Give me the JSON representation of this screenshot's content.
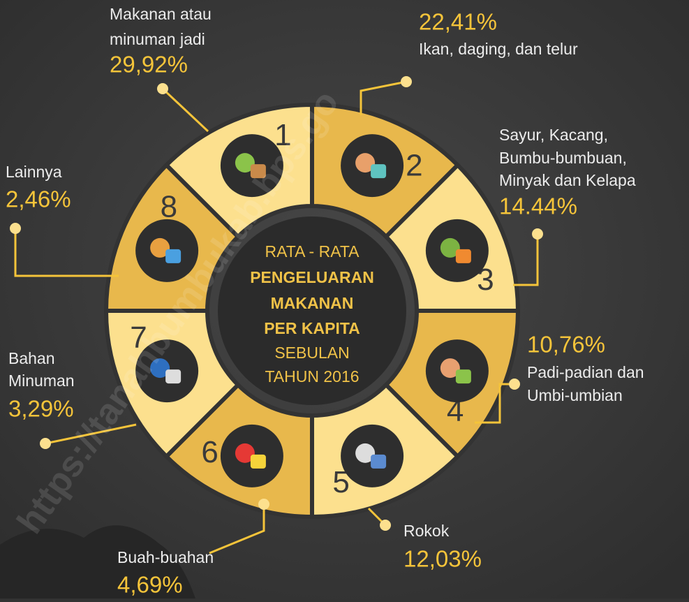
{
  "center": {
    "lines": [
      "RATA - RATA",
      "PENGELUARAN",
      "MAKANAN",
      "PER KAPITA",
      "SEBULAN",
      "TAHUN 2016"
    ]
  },
  "segments": [
    {
      "number": "1",
      "label": [
        "Makanan atau",
        "minuman jadi"
      ],
      "value": "29,92%"
    },
    {
      "number": "2",
      "label": [
        "Ikan, daging, dan telur"
      ],
      "value": "22,41%"
    },
    {
      "number": "3",
      "label": [
        "Sayur, Kacang,",
        "Bumbu-bumbuan,",
        "Minyak dan Kelapa"
      ],
      "value": "14.44%"
    },
    {
      "number": "4",
      "label": [
        "Padi-padian dan",
        "Umbi-umbian"
      ],
      "value": "10,76%"
    },
    {
      "number": "5",
      "label": [
        "Rokok"
      ],
      "value": "12,03%"
    },
    {
      "number": "6",
      "label": [
        "Buah-buahan"
      ],
      "value": "4,69%"
    },
    {
      "number": "7",
      "label": [
        "Bahan",
        "Minuman"
      ],
      "value": "3,29%"
    },
    {
      "number": "8",
      "label": [
        "Lainnya"
      ],
      "value": "2,46%"
    }
  ],
  "watermark": "https://tanahbumbukab.bps.go"
}
